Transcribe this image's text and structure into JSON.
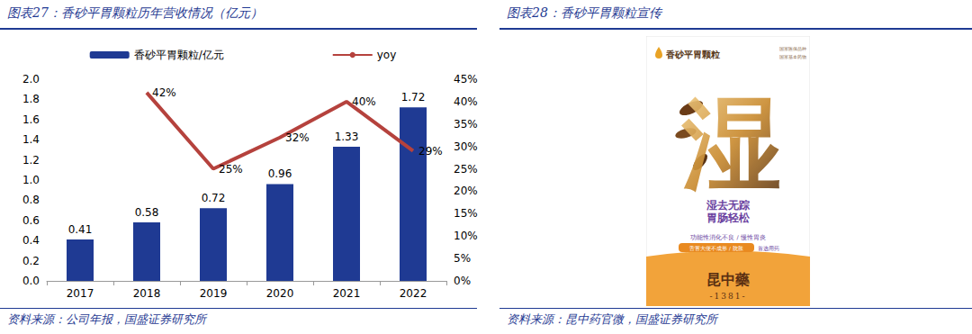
{
  "chart_data": {
    "type": "bar",
    "title": "图表27：香砂平胃颗粒历年营收情况（亿元）",
    "source": "资料来源：公司年报，国盛证券研究所",
    "categories": [
      "2017",
      "2018",
      "2019",
      "2020",
      "2021",
      "2022"
    ],
    "series": [
      {
        "name": "香砂平胃颗粒/亿元",
        "type": "bar",
        "color": "#1f3a93",
        "values": [
          0.41,
          0.58,
          0.72,
          0.96,
          1.33,
          1.72
        ],
        "data_labels": true
      },
      {
        "name": "yoy",
        "type": "line",
        "color": "#b5423d",
        "axis": "y2",
        "values": [
          null,
          42,
          25,
          32,
          40,
          29
        ],
        "value_labels": [
          null,
          "42%",
          "25%",
          "32%",
          "40%",
          "29%"
        ],
        "data_labels": true
      }
    ],
    "ylim": [
      0,
      2
    ],
    "yticks": [
      {
        "value": 0,
        "label": "0.0"
      },
      0.2,
      0.4,
      0.6,
      0.8,
      {
        "value": 1,
        "label": "1.0"
      },
      1.2,
      1.4,
      1.6,
      1.8,
      {
        "value": 2,
        "label": "2.0"
      }
    ],
    "y2lim": [
      0,
      45
    ],
    "y2ticks": [
      {
        "value": 0,
        "label": "0%"
      },
      {
        "value": 5,
        "label": "5%"
      },
      {
        "value": 10,
        "label": "10%"
      },
      {
        "value": 15,
        "label": "15%"
      },
      {
        "value": 20,
        "label": "20%"
      },
      {
        "value": 25,
        "label": "25%"
      },
      {
        "value": 30,
        "label": "30%"
      },
      {
        "value": 35,
        "label": "35%"
      },
      {
        "value": 40,
        "label": "40%"
      },
      {
        "value": 45,
        "label": "45%"
      }
    ],
    "grid": false,
    "legend": "top"
  },
  "poster": {
    "title": "图表28：香砂平胃颗粒宣传",
    "source": "资料来源：昆中药官微，国盛证券研究所",
    "brand": "香砂平胃颗粒",
    "badges": [
      "国家医保品种",
      "国家基本药物"
    ],
    "art_character": "湿",
    "slogan": [
      "湿去无踪",
      "胃肠轻松"
    ],
    "indications": "功能性消化不良 / 慢性胃炎",
    "symptoms": "舌苔大便不成形 / 脘胀",
    "recommend": "首选用药",
    "maker": "昆中藥",
    "year": "-1381-"
  }
}
